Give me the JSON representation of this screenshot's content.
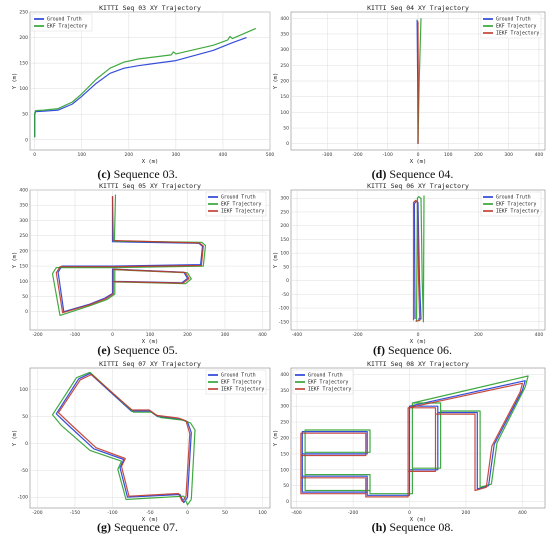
{
  "colors": {
    "ground_truth": "#1f3bd6",
    "ekf": "#2ca02c",
    "ikf": "#c0392b",
    "grid": "#dddddd"
  },
  "panels": [
    {
      "caption_letter": "(c)",
      "caption_text": "Sequence 03."
    },
    {
      "caption_letter": "(d)",
      "caption_text": "Sequence 04."
    },
    {
      "caption_letter": "(e)",
      "caption_text": "Sequence 05."
    },
    {
      "caption_letter": "(f)",
      "caption_text": "Sequence 06."
    },
    {
      "caption_letter": "(g)",
      "caption_text": "Sequence 07."
    },
    {
      "caption_letter": "(h)",
      "caption_text": "Sequence 08."
    }
  ],
  "chart_data": [
    {
      "type": "line",
      "title": "KITTI Seq 03 XY Trajectory",
      "xlabel": "X (m)",
      "ylabel": "Y (m)",
      "xlim": [
        -10,
        500
      ],
      "ylim": [
        -20,
        250
      ],
      "xticks": [
        0,
        100,
        200,
        300,
        400,
        500
      ],
      "yticks": [
        0,
        50,
        100,
        150,
        200,
        250
      ],
      "grid": true,
      "legend": "top-left",
      "series": [
        {
          "name": "Ground Truth",
          "color": "#1f3bd6",
          "x": [
            0,
            0,
            2,
            20,
            50,
            80,
            100,
            130,
            160,
            190,
            220,
            260,
            300,
            340,
            380,
            420,
            450
          ],
          "y": [
            5,
            50,
            55,
            56,
            58,
            70,
            85,
            110,
            130,
            140,
            145,
            150,
            155,
            165,
            175,
            190,
            200
          ]
        },
        {
          "name": "EKF  Trajectory",
          "color": "#2ca02c",
          "x": [
            0,
            0,
            2,
            20,
            50,
            80,
            100,
            130,
            160,
            190,
            220,
            290,
            295,
            300,
            380,
            410,
            415,
            420,
            470
          ],
          "y": [
            5,
            52,
            57,
            58,
            61,
            74,
            90,
            118,
            140,
            152,
            158,
            166,
            172,
            168,
            185,
            195,
            202,
            198,
            218
          ]
        }
      ]
    },
    {
      "type": "line",
      "title": "KITTI Seq 04 XY Trajectory",
      "xlabel": "X (m)",
      "ylabel": "Y (m)",
      "xlim": [
        -420,
        420
      ],
      "ylim": [
        -20,
        420
      ],
      "xticks": [
        -300,
        -200,
        -100,
        0,
        100,
        200,
        300,
        400
      ],
      "yticks": [
        0,
        50,
        100,
        150,
        200,
        250,
        300,
        350,
        400
      ],
      "grid": true,
      "legend": "top-right",
      "series": [
        {
          "name": "Ground Truth",
          "color": "#1f3bd6",
          "x": [
            0,
            -1,
            -3
          ],
          "y": [
            0,
            200,
            395
          ]
        },
        {
          "name": "EKF  Trajectory",
          "color": "#2ca02c",
          "x": [
            0,
            4,
            10
          ],
          "y": [
            0,
            200,
            400
          ]
        },
        {
          "name": "IEKF Trajectory",
          "color": "#c0392b",
          "x": [
            0,
            1,
            0
          ],
          "y": [
            0,
            200,
            390
          ]
        }
      ]
    },
    {
      "type": "line",
      "title": "KITTI Seq 05 XY Trajectory",
      "xlabel": "X (m)",
      "ylabel": "Y (m)",
      "xlim": [
        -220,
        420
      ],
      "ylim": [
        -60,
        400
      ],
      "xticks": [
        -200,
        -100,
        0,
        100,
        200,
        300,
        400
      ],
      "yticks": [
        0,
        50,
        100,
        150,
        200,
        250,
        300,
        350,
        400
      ],
      "grid": true,
      "legend": "top-right",
      "series": [
        {
          "name": "Ground Truth",
          "color": "#1f3bd6",
          "x": [
            0,
            0,
            230,
            240,
            235,
            0,
            -135,
            -145,
            -130,
            -60,
            -20,
            0,
            0,
            190,
            200,
            185,
            0
          ],
          "y": [
            380,
            230,
            225,
            215,
            155,
            150,
            150,
            130,
            0,
            25,
            45,
            60,
            140,
            130,
            110,
            95,
            100
          ]
        },
        {
          "name": "EKF  Trajectory",
          "color": "#2ca02c",
          "x": [
            8,
            5,
            238,
            248,
            242,
            5,
            -150,
            -160,
            -140,
            -60,
            -15,
            6,
            6,
            200,
            210,
            195,
            6
          ],
          "y": [
            385,
            232,
            228,
            218,
            150,
            145,
            145,
            125,
            -12,
            20,
            40,
            58,
            138,
            128,
            108,
            92,
            98
          ]
        },
        {
          "name": "IEKF Trajectory",
          "color": "#c0392b",
          "x": [
            0,
            2,
            232,
            242,
            237,
            2,
            -140,
            -150,
            -133,
            -60,
            -18,
            2,
            2,
            194,
            204,
            188,
            2
          ],
          "y": [
            380,
            234,
            226,
            216,
            152,
            148,
            148,
            128,
            -3,
            23,
            43,
            59,
            139,
            129,
            109,
            94,
            99
          ]
        }
      ]
    },
    {
      "type": "line",
      "title": "KITTI Seq 06 XY Trajectory",
      "xlabel": "X (m)",
      "ylabel": "Y (m)",
      "xlim": [
        -420,
        420
      ],
      "ylim": [
        -180,
        330
      ],
      "xticks": [
        -400,
        -200,
        0,
        200,
        400
      ],
      "yticks": [
        -150,
        -100,
        -50,
        0,
        50,
        100,
        150,
        200,
        250,
        300
      ],
      "grid": true,
      "legend": "top-right",
      "series": [
        {
          "name": "Ground Truth",
          "color": "#1f3bd6",
          "x": [
            -10,
            -12,
            -5,
            0,
            5,
            10,
            0
          ],
          "y": [
            -140,
            280,
            290,
            285,
            0,
            -140,
            -140
          ]
        },
        {
          "name": "EKF  Trajectory",
          "color": "#2ca02c",
          "x": [
            -5,
            -2,
            2,
            10,
            14,
            18,
            20
          ],
          "y": [
            -150,
            300,
            306,
            300,
            0,
            -150,
            310
          ]
        },
        {
          "name": "IEKF Trajectory",
          "color": "#c0392b",
          "x": [
            -15,
            -15,
            -8,
            -2,
            2,
            6,
            -8
          ],
          "y": [
            -145,
            285,
            292,
            286,
            0,
            -145,
            -148
          ]
        }
      ]
    },
    {
      "type": "line",
      "title": "KITTI Seq 07 XY Trajectory",
      "xlabel": "X (m)",
      "ylabel": "Y (m)",
      "xlim": [
        -210,
        110
      ],
      "ylim": [
        -120,
        140
      ],
      "xticks": [
        -200,
        -150,
        -100,
        -50,
        0,
        50,
        100
      ],
      "yticks": [
        -100,
        -50,
        0,
        50,
        100
      ],
      "grid": true,
      "legend": "top-right",
      "series": [
        {
          "name": "Ground Truth",
          "color": "#1f3bd6",
          "x": [
            0,
            -5,
            -10,
            -80,
            -90,
            -85,
            -125,
            -160,
            -175,
            -145,
            -130,
            -75,
            -50,
            -40,
            -10,
            0,
            5,
            0
          ],
          "y": [
            -100,
            -110,
            -95,
            -100,
            -45,
            -30,
            -10,
            35,
            55,
            120,
            130,
            60,
            60,
            50,
            45,
            40,
            20,
            -100
          ]
        },
        {
          "name": "EKF  Trajectory",
          "color": "#2ca02c",
          "x": [
            5,
            0,
            -5,
            -82,
            -93,
            -88,
            -130,
            -168,
            -180,
            -148,
            -130,
            -72,
            -48,
            -36,
            -6,
            4,
            10,
            5
          ],
          "y": [
            -104,
            -114,
            -98,
            -104,
            -48,
            -33,
            -13,
            33,
            53,
            122,
            132,
            58,
            58,
            48,
            43,
            38,
            25,
            -104
          ]
        },
        {
          "name": "IEKF Trajectory",
          "color": "#c0392b",
          "x": [
            -2,
            -7,
            -12,
            -78,
            -88,
            -83,
            -122,
            -157,
            -172,
            -143,
            -128,
            -74,
            -51,
            -41,
            -12,
            -2,
            3,
            -2
          ],
          "y": [
            -98,
            -108,
            -93,
            -98,
            -43,
            -28,
            -8,
            37,
            57,
            118,
            128,
            62,
            62,
            52,
            47,
            42,
            18,
            -98
          ]
        }
      ]
    },
    {
      "type": "line",
      "title": "KITTI Seq 08 XY Trajectory",
      "xlabel": "X (m)",
      "ylabel": "Y (m)",
      "xlim": [
        -420,
        480
      ],
      "ylim": [
        -20,
        420
      ],
      "xticks": [
        -400,
        -200,
        0,
        200,
        400
      ],
      "yticks": [
        0,
        50,
        100,
        150,
        200,
        250,
        300,
        350,
        400
      ],
      "grid": true,
      "legend": "top-left",
      "series": [
        {
          "name": "Ground Truth",
          "color": "#1f3bd6",
          "x": [
            0,
            410,
            400,
            300,
            280,
            240,
            240,
            100,
            100,
            0,
            0,
            -150,
            -150,
            -380,
            -380,
            -150,
            -150,
            -380,
            -380,
            -150,
            -150,
            0,
            0,
            100,
            100,
            0
          ],
          "y": [
            300,
            380,
            350,
            180,
            50,
            40,
            280,
            280,
            100,
            100,
            20,
            20,
            80,
            80,
            150,
            150,
            220,
            220,
            30,
            30,
            20,
            20,
            300,
            300,
            100,
            100
          ]
        },
        {
          "name": "EKF  Trajectory",
          "color": "#2ca02c",
          "x": [
            10,
            420,
            410,
            310,
            290,
            250,
            250,
            110,
            110,
            10,
            10,
            -140,
            -140,
            -370,
            -370,
            -140,
            -140,
            -370,
            -370,
            -140,
            -140,
            10,
            10,
            110,
            110,
            10
          ],
          "y": [
            310,
            395,
            360,
            185,
            55,
            45,
            285,
            285,
            105,
            105,
            25,
            25,
            85,
            85,
            155,
            155,
            225,
            225,
            35,
            35,
            25,
            25,
            310,
            310,
            105,
            105
          ]
        },
        {
          "name": "IEKF Trajectory",
          "color": "#c0392b",
          "x": [
            -5,
            400,
            392,
            292,
            272,
            232,
            232,
            92,
            92,
            -5,
            -5,
            -155,
            -155,
            -385,
            -385,
            -155,
            -155,
            -385,
            -385,
            -155,
            -155,
            -5,
            -5,
            92,
            92,
            -5
          ],
          "y": [
            295,
            372,
            345,
            175,
            45,
            35,
            275,
            275,
            95,
            95,
            15,
            15,
            75,
            75,
            145,
            145,
            215,
            215,
            25,
            25,
            15,
            15,
            295,
            295,
            95,
            95
          ]
        }
      ]
    }
  ]
}
